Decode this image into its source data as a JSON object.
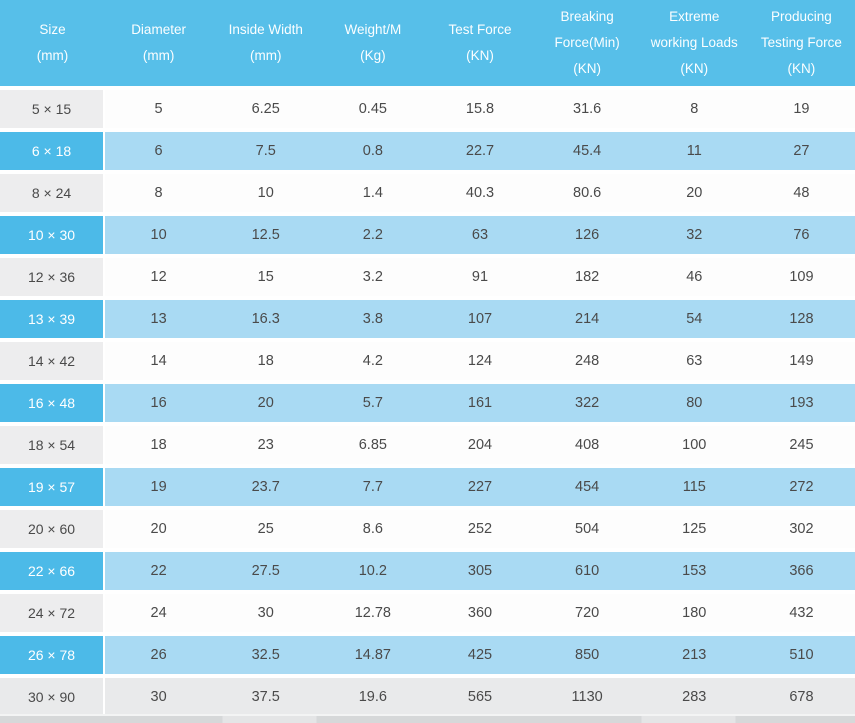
{
  "chart_data": {
    "type": "table",
    "columns": [
      {
        "key": "size",
        "lines": [
          "Size",
          "(mm)"
        ]
      },
      {
        "key": "diameter",
        "lines": [
          "Diameter",
          "(mm)"
        ]
      },
      {
        "key": "inside-width",
        "lines": [
          "Inside Width",
          "(mm)"
        ]
      },
      {
        "key": "weight-per-m",
        "lines": [
          "Weight/M",
          "(Kg)"
        ]
      },
      {
        "key": "test-force",
        "lines": [
          "Test Force",
          "(KN)"
        ]
      },
      {
        "key": "breaking-force-min",
        "lines": [
          "Breaking",
          "Force(Min)",
          "(KN)"
        ]
      },
      {
        "key": "extreme-working-loads",
        "lines": [
          "Extreme",
          "working Loads",
          "(KN)"
        ]
      },
      {
        "key": "producing-testing-force",
        "lines": [
          "Producing",
          "Testing Force",
          "(KN)"
        ]
      }
    ],
    "rows": [
      {
        "size": "5 × 15",
        "values": [
          "5",
          "6.25",
          "0.45",
          "15.8",
          "31.6",
          "8",
          "19"
        ]
      },
      {
        "size": "6 × 18",
        "values": [
          "6",
          "7.5",
          "0.8",
          "22.7",
          "45.4",
          "11",
          "27"
        ]
      },
      {
        "size": "8 × 24",
        "values": [
          "8",
          "10",
          "1.4",
          "40.3",
          "80.6",
          "20",
          "48"
        ]
      },
      {
        "size": "10 × 30",
        "values": [
          "10",
          "12.5",
          "2.2",
          "63",
          "126",
          "32",
          "76"
        ]
      },
      {
        "size": "12 × 36",
        "values": [
          "12",
          "15",
          "3.2",
          "91",
          "182",
          "46",
          "109"
        ]
      },
      {
        "size": "13 × 39",
        "values": [
          "13",
          "16.3",
          "3.8",
          "107",
          "214",
          "54",
          "128"
        ]
      },
      {
        "size": "14 × 42",
        "values": [
          "14",
          "18",
          "4.2",
          "124",
          "248",
          "63",
          "149"
        ]
      },
      {
        "size": "16 × 48",
        "values": [
          "16",
          "20",
          "5.7",
          "161",
          "322",
          "80",
          "193"
        ]
      },
      {
        "size": "18 × 54",
        "values": [
          "18",
          "23",
          "6.85",
          "204",
          "408",
          "100",
          "245"
        ]
      },
      {
        "size": "19 × 57",
        "values": [
          "19",
          "23.7",
          "7.7",
          "227",
          "454",
          "115",
          "272"
        ]
      },
      {
        "size": "20 × 60",
        "values": [
          "20",
          "25",
          "8.6",
          "252",
          "504",
          "125",
          "302"
        ]
      },
      {
        "size": "22 × 66",
        "values": [
          "22",
          "27.5",
          "10.2",
          "305",
          "610",
          "153",
          "366"
        ]
      },
      {
        "size": "24 × 72",
        "values": [
          "24",
          "30",
          "12.78",
          "360",
          "720",
          "180",
          "432"
        ]
      },
      {
        "size": "26 × 78",
        "values": [
          "26",
          "32.5",
          "14.87",
          "425",
          "850",
          "213",
          "510"
        ]
      },
      {
        "size": "30 × 90",
        "values": [
          "30",
          "37.5",
          "19.6",
          "565",
          "1130",
          "283",
          "678"
        ]
      }
    ]
  },
  "colors": {
    "header_blue": "#57bfe9",
    "size_col_blue": "#4cbae8",
    "row_blue": "#a9daf3",
    "size_col_gray": "#ededee",
    "row_gray": "#e9eaeb",
    "row_white": "#fdfdfd",
    "separator_white": "#ffffff",
    "header_text": "#fbfeff",
    "data_text": "#4a4a4a",
    "bottom_strip": "#d6d8d9"
  }
}
